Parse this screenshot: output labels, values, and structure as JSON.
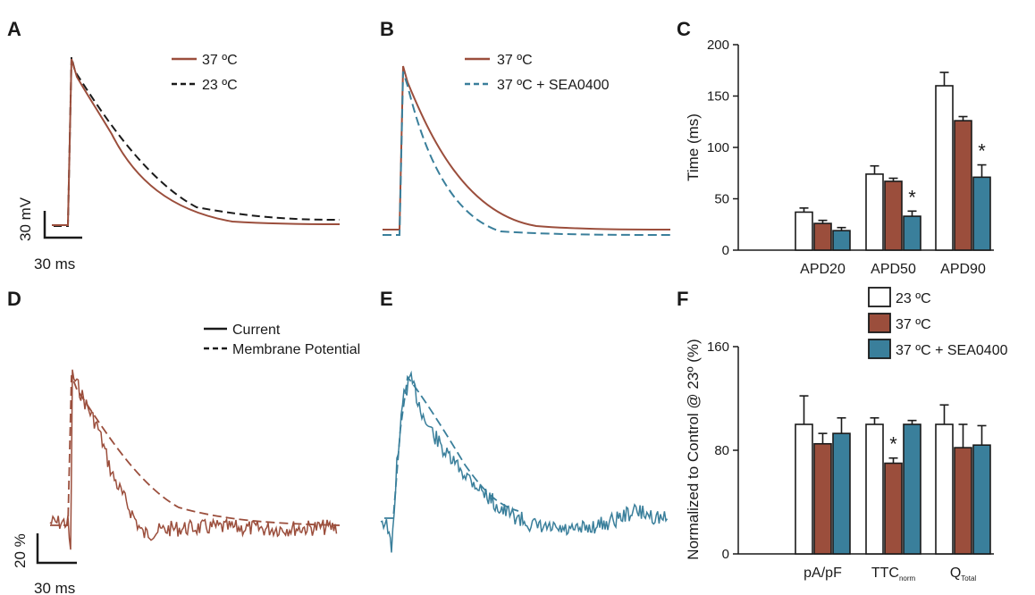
{
  "colors": {
    "c37": "#9b4e3c",
    "sea": "#3a7f9b",
    "c23": "#ffffff",
    "black": "#1a1a1a"
  },
  "panels": {
    "A": {
      "label": "A",
      "legend": [
        "37 ºC",
        "23 ºC"
      ],
      "scale_v": "30 mV",
      "scale_t": "30 ms"
    },
    "B": {
      "label": "B",
      "legend": [
        "37 ºC",
        "37 ºC + SEA0400"
      ]
    },
    "D": {
      "label": "D",
      "legend": [
        "Current",
        "Membrane Potential"
      ],
      "scale_v": "20 %",
      "scale_t": "30 ms"
    },
    "E": {
      "label": "E"
    }
  },
  "chart_data": [
    {
      "panel": "C",
      "label": "C",
      "type": "bar",
      "ylabel": "Time (ms)",
      "ylim": [
        0,
        200
      ],
      "yticks": [
        "0",
        "50",
        "100",
        "150",
        "200"
      ],
      "categories": [
        "APD20",
        "APD50",
        "APD90"
      ],
      "series": [
        {
          "name": "23 ºC",
          "values": [
            37,
            74,
            160
          ],
          "errors": [
            4,
            8,
            13
          ]
        },
        {
          "name": "37 ºC",
          "values": [
            26,
            67,
            126
          ],
          "errors": [
            3,
            3,
            4
          ]
        },
        {
          "name": "37 ºC + SEA0400",
          "values": [
            19,
            33,
            71
          ],
          "errors": [
            3,
            5,
            12
          ]
        }
      ],
      "significance": [
        "",
        "*",
        "*"
      ]
    },
    {
      "panel": "F",
      "label": "F",
      "type": "bar",
      "ylabel": "Normalized to Control @ 23º (%)",
      "ylim": [
        0,
        160
      ],
      "yticks": [
        "0",
        "80",
        "160"
      ],
      "categories": [
        {
          "main": "pA/pF",
          "sub": ""
        },
        {
          "main": "TTC",
          "sub": "norm"
        },
        {
          "main": "Q",
          "sub": "Total"
        }
      ],
      "series": [
        {
          "name": "23 ºC",
          "values": [
            100,
            100,
            100
          ],
          "errors": [
            22,
            5,
            15
          ]
        },
        {
          "name": "37 ºC",
          "values": [
            85,
            70,
            82
          ],
          "errors": [
            8,
            4,
            18
          ]
        },
        {
          "name": "37 ºC + SEA0400",
          "values": [
            93,
            100,
            84
          ],
          "errors": [
            12,
            3,
            15
          ]
        }
      ],
      "significance": [
        "",
        "*",
        ""
      ]
    }
  ]
}
